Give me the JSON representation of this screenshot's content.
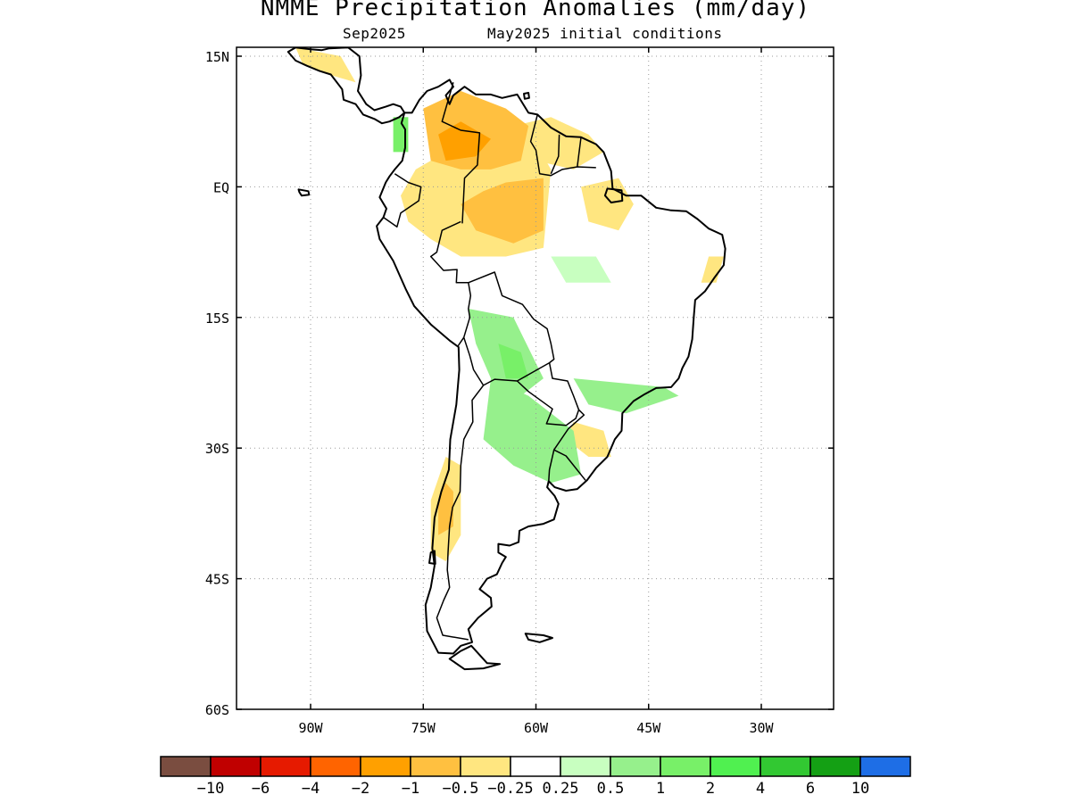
{
  "header": {
    "title": "NMME Precipitation Anomalies (mm/day)",
    "valid_month": "Sep2025",
    "init_label": "May2025 initial conditions"
  },
  "map": {
    "lon_range": [
      -100,
      -20
    ],
    "lat_range": [
      -60,
      15
    ],
    "grid": "dotted",
    "lon_ticks": [
      {
        "value": -90,
        "label": "90W"
      },
      {
        "value": -75,
        "label": "75W"
      },
      {
        "value": -60,
        "label": "60W"
      },
      {
        "value": -45,
        "label": "45W"
      },
      {
        "value": -30,
        "label": "30W"
      }
    ],
    "lat_ticks": [
      {
        "value": 15,
        "label": "15N"
      },
      {
        "value": 0,
        "label": "EQ"
      },
      {
        "value": -15,
        "label": "15S"
      },
      {
        "value": -30,
        "label": "30S"
      },
      {
        "value": -45,
        "label": "45S"
      },
      {
        "value": -60,
        "label": "60S"
      }
    ],
    "anomaly_regions": [
      {
        "name": "northern-amazon-dry",
        "level": "-1",
        "polygon": [
          [
            -75,
            9
          ],
          [
            -70,
            11
          ],
          [
            -64,
            9
          ],
          [
            -61,
            7
          ],
          [
            -62,
            3
          ],
          [
            -66,
            2
          ],
          [
            -70,
            2
          ],
          [
            -74,
            3
          ]
        ]
      },
      {
        "name": "colombia-core-dry",
        "level": "-2",
        "polygon": [
          [
            -73,
            6
          ],
          [
            -70,
            7.5
          ],
          [
            -66,
            5.5
          ],
          [
            -68,
            3.5
          ],
          [
            -72,
            3
          ]
        ]
      },
      {
        "name": "western-amazon-dry",
        "level": "-1",
        "polygon": [
          [
            -64,
            0.5
          ],
          [
            -59,
            1
          ],
          [
            -59,
            -5
          ],
          [
            -63,
            -6.5
          ],
          [
            -68,
            -5
          ],
          [
            -70,
            -2
          ],
          [
            -67,
            -0.5
          ]
        ]
      },
      {
        "name": "guiana-dry",
        "level": "-0.5",
        "polygon": [
          [
            -63,
            7
          ],
          [
            -58,
            8
          ],
          [
            -53,
            6
          ],
          [
            -51,
            4
          ],
          [
            -55,
            2
          ],
          [
            -60,
            3
          ],
          [
            -63,
            4
          ]
        ]
      },
      {
        "name": "amazon-broad-dry",
        "level": "-0.5",
        "polygon": [
          [
            -76,
            2
          ],
          [
            -72,
            4
          ],
          [
            -66,
            6
          ],
          [
            -60,
            5
          ],
          [
            -58,
            2
          ],
          [
            -59,
            -7
          ],
          [
            -64,
            -8
          ],
          [
            -70,
            -8
          ],
          [
            -74,
            -6
          ],
          [
            -77,
            -4
          ],
          [
            -78,
            -1
          ]
        ]
      },
      {
        "name": "amapa-dry",
        "level": "-0.5",
        "polygon": [
          [
            -54,
            0
          ],
          [
            -49,
            1
          ],
          [
            -47,
            -2
          ],
          [
            -49,
            -5
          ],
          [
            -53,
            -4
          ]
        ]
      },
      {
        "name": "northeast-brazil-dry",
        "level": "-0.5",
        "polygon": [
          [
            -37,
            -8
          ],
          [
            -35,
            -8
          ],
          [
            -36,
            -11
          ],
          [
            -38,
            -11
          ]
        ]
      },
      {
        "name": "chile-andes-dry",
        "level": "-0.5",
        "polygon": [
          [
            -72,
            -31
          ],
          [
            -70,
            -32
          ],
          [
            -70,
            -40
          ],
          [
            -72,
            -43
          ],
          [
            -74,
            -42
          ],
          [
            -74,
            -36
          ]
        ]
      },
      {
        "name": "chile-core-dry",
        "level": "-1",
        "polygon": [
          [
            -72,
            -34
          ],
          [
            -71,
            -35
          ],
          [
            -71,
            -39
          ],
          [
            -73,
            -40
          ],
          [
            -73,
            -36
          ]
        ]
      },
      {
        "name": "uruguay-dry",
        "level": "-0.5",
        "polygon": [
          [
            -55,
            -27
          ],
          [
            -51,
            -28
          ],
          [
            -50,
            -31
          ],
          [
            -53,
            -31
          ],
          [
            -56,
            -29
          ]
        ]
      },
      {
        "name": "central-america-dry",
        "level": "-0.5",
        "polygon": [
          [
            -92,
            16
          ],
          [
            -86,
            15
          ],
          [
            -84,
            12
          ],
          [
            -88,
            13
          ],
          [
            -91,
            14
          ]
        ]
      },
      {
        "name": "colombia-pacific-wet",
        "level": "1",
        "polygon": [
          [
            -79,
            8
          ],
          [
            -77,
            8
          ],
          [
            -77,
            4
          ],
          [
            -79,
            4
          ]
        ]
      },
      {
        "name": "bolivia-wet",
        "level": "0.5",
        "polygon": [
          [
            -69,
            -14
          ],
          [
            -63,
            -15
          ],
          [
            -59,
            -22
          ],
          [
            -62,
            -24
          ],
          [
            -66,
            -22
          ],
          [
            -68,
            -18
          ]
        ]
      },
      {
        "name": "bolivia-core-wet",
        "level": "1",
        "polygon": [
          [
            -65,
            -18
          ],
          [
            -62,
            -19
          ],
          [
            -61,
            -22
          ],
          [
            -64,
            -22
          ]
        ]
      },
      {
        "name": "argentina-wet",
        "level": "0.5",
        "polygon": [
          [
            -66,
            -22
          ],
          [
            -61,
            -24
          ],
          [
            -55,
            -28
          ],
          [
            -54,
            -33
          ],
          [
            -58,
            -34
          ],
          [
            -63,
            -32
          ],
          [
            -67,
            -29
          ]
        ]
      },
      {
        "name": "southern-brazil-wet",
        "level": "0.5",
        "polygon": [
          [
            -55,
            -22
          ],
          [
            -43,
            -23
          ],
          [
            -41,
            -24
          ],
          [
            -48,
            -26
          ],
          [
            -53,
            -25
          ]
        ]
      },
      {
        "name": "central-brazil-wet",
        "level": "0.25",
        "polygon": [
          [
            -58,
            -8
          ],
          [
            -52,
            -8
          ],
          [
            -50,
            -11
          ],
          [
            -56,
            -11
          ]
        ]
      }
    ]
  },
  "colorbar": {
    "colors": [
      "#7a4d40",
      "#c00000",
      "#e61a00",
      "#ff6400",
      "#ffa000",
      "#ffc040",
      "#ffe680",
      "#ffffff",
      "#c8ffc0",
      "#96f08c",
      "#78f068",
      "#50f050",
      "#32c832",
      "#14a014",
      "#1e6ee6"
    ],
    "labels": [
      "−10",
      "−6",
      "−4",
      "−2",
      "−1",
      "−0.5",
      "−0.25",
      "0.25",
      "0.5",
      "1",
      "2",
      "4",
      "6",
      "10"
    ]
  }
}
